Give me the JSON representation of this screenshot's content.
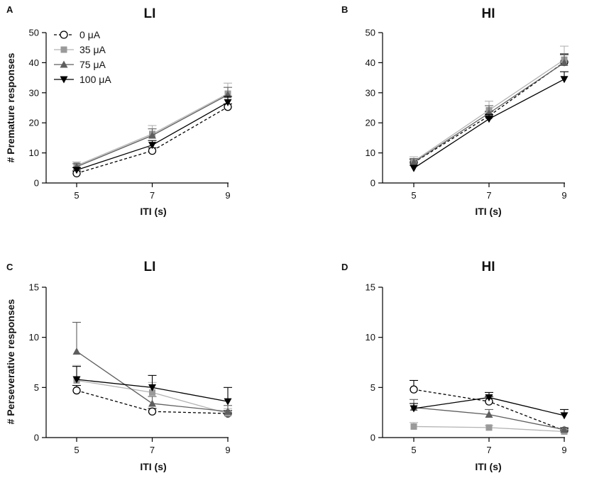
{
  "legend": {
    "entries": [
      {
        "name": "0 μA",
        "color": "#000000",
        "marker": "circle-open",
        "dash": true
      },
      {
        "name": "35 μA",
        "color": "#9a9a9a",
        "marker": "square",
        "dash": false
      },
      {
        "name": "75 μA",
        "color": "#5e5e5e",
        "marker": "triangle-up",
        "dash": false
      },
      {
        "name": "100 μA",
        "color": "#000000",
        "marker": "triangle-down",
        "dash": false
      }
    ]
  },
  "chart_data": [
    {
      "type": "line",
      "panel_letter": "A",
      "title": "LI",
      "xlabel": "ITI (s)",
      "ylabel": "# Premature responses",
      "x": [
        5,
        7,
        9
      ],
      "xticks": [
        "5",
        "7",
        "9"
      ],
      "ylim": [
        0,
        50
      ],
      "yticks": [
        0,
        10,
        20,
        30,
        40,
        50
      ],
      "legend_position": "top-left",
      "series": [
        {
          "name": "0 μA",
          "values": [
            3.2,
            10.7,
            25.3
          ],
          "err": [
            0.8,
            1.0,
            1.0
          ]
        },
        {
          "name": "35 μA",
          "values": [
            5.8,
            16.3,
            29.7
          ],
          "err": [
            1.2,
            2.8,
            3.5
          ]
        },
        {
          "name": "75 μA",
          "values": [
            5.4,
            15.8,
            29.3
          ],
          "err": [
            1.0,
            2.2,
            2.5
          ]
        },
        {
          "name": "100 μA",
          "values": [
            4.3,
            12.6,
            26.8
          ],
          "err": [
            0.8,
            1.5,
            2.0
          ]
        }
      ]
    },
    {
      "type": "line",
      "panel_letter": "B",
      "title": "HI",
      "xlabel": "ITI (s)",
      "ylabel": "",
      "x": [
        5,
        7,
        9
      ],
      "xticks": [
        "5",
        "7",
        "9"
      ],
      "ylim": [
        0,
        50
      ],
      "yticks": [
        0,
        10,
        20,
        30,
        40,
        50
      ],
      "series": [
        {
          "name": "0 μA",
          "values": [
            6.8,
            22.3,
            40.2
          ],
          "err": [
            1.0,
            1.5,
            2.5
          ]
        },
        {
          "name": "35 μA",
          "values": [
            7.2,
            24.2,
            41.0
          ],
          "err": [
            1.5,
            3.0,
            4.5
          ]
        },
        {
          "name": "75 μA",
          "values": [
            6.9,
            23.2,
            40.0
          ],
          "err": [
            1.2,
            2.5,
            3.0
          ]
        },
        {
          "name": "100 μA",
          "values": [
            4.9,
            21.3,
            34.5
          ],
          "err": [
            1.0,
            1.5,
            2.5
          ]
        }
      ]
    },
    {
      "type": "line",
      "panel_letter": "C",
      "title": "LI",
      "xlabel": "ITI (s)",
      "ylabel": "# Perseverative responses",
      "x": [
        5,
        7,
        9
      ],
      "xticks": [
        "5",
        "7",
        "9"
      ],
      "ylim": [
        0,
        15
      ],
      "yticks": [
        0,
        5,
        10,
        15
      ],
      "series": [
        {
          "name": "0 μA",
          "values": [
            4.7,
            2.6,
            2.4
          ],
          "err": [
            0.5,
            0.3,
            0.3
          ]
        },
        {
          "name": "35 μA",
          "values": [
            5.7,
            4.5,
            2.4
          ],
          "err": [
            1.5,
            1.0,
            0.5
          ]
        },
        {
          "name": "75 μA",
          "values": [
            8.6,
            3.4,
            2.6
          ],
          "err": [
            2.9,
            0.7,
            0.6
          ]
        },
        {
          "name": "100 μA",
          "values": [
            5.8,
            5.0,
            3.6
          ],
          "err": [
            1.3,
            1.2,
            1.4
          ]
        }
      ]
    },
    {
      "type": "line",
      "panel_letter": "D",
      "title": "HI",
      "xlabel": "ITI (s)",
      "ylabel": "",
      "x": [
        5,
        7,
        9
      ],
      "xticks": [
        "5",
        "7",
        "9"
      ],
      "ylim": [
        0,
        15
      ],
      "yticks": [
        0,
        5,
        10,
        15
      ],
      "series": [
        {
          "name": "0 μA",
          "values": [
            4.8,
            3.6,
            0.7
          ],
          "err": [
            0.9,
            0.5,
            0.2
          ]
        },
        {
          "name": "35 μA",
          "values": [
            1.1,
            1.0,
            0.6
          ],
          "err": [
            0.4,
            0.2,
            0.2
          ]
        },
        {
          "name": "75 μA",
          "values": [
            3.0,
            2.3,
            0.8
          ],
          "err": [
            0.8,
            0.5,
            0.2
          ]
        },
        {
          "name": "100 μA",
          "values": [
            2.9,
            4.0,
            2.2
          ],
          "err": [
            0.5,
            0.5,
            0.6
          ]
        }
      ]
    }
  ]
}
